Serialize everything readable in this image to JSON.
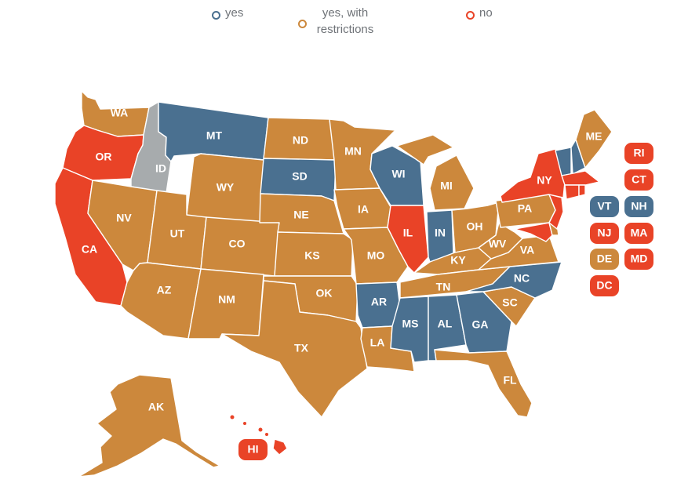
{
  "legend": {
    "yes": "yes",
    "restricted": "yes, with restrictions",
    "no": "no"
  },
  "colors": {
    "yes": "#4a7090",
    "restricted": "#cc883c",
    "no": "#e94327",
    "none": "#a7abad"
  },
  "states": {
    "WA": {
      "label": "WA",
      "status": "restricted"
    },
    "OR": {
      "label": "OR",
      "status": "no"
    },
    "CA": {
      "label": "CA",
      "status": "no"
    },
    "ID": {
      "label": "ID",
      "status": "none"
    },
    "NV": {
      "label": "NV",
      "status": "restricted"
    },
    "MT": {
      "label": "MT",
      "status": "yes"
    },
    "WY": {
      "label": "WY",
      "status": "restricted"
    },
    "UT": {
      "label": "UT",
      "status": "restricted"
    },
    "AZ": {
      "label": "AZ",
      "status": "restricted"
    },
    "CO": {
      "label": "CO",
      "status": "restricted"
    },
    "NM": {
      "label": "NM",
      "status": "restricted"
    },
    "ND": {
      "label": "ND",
      "status": "restricted"
    },
    "SD": {
      "label": "SD",
      "status": "yes"
    },
    "NE": {
      "label": "NE",
      "status": "restricted"
    },
    "KS": {
      "label": "KS",
      "status": "restricted"
    },
    "OK": {
      "label": "OK",
      "status": "restricted"
    },
    "TX": {
      "label": "TX",
      "status": "restricted"
    },
    "MN": {
      "label": "MN",
      "status": "restricted"
    },
    "IA": {
      "label": "IA",
      "status": "restricted"
    },
    "MO": {
      "label": "MO",
      "status": "restricted"
    },
    "AR": {
      "label": "AR",
      "status": "yes"
    },
    "LA": {
      "label": "LA",
      "status": "restricted"
    },
    "WI": {
      "label": "WI",
      "status": "yes"
    },
    "IL": {
      "label": "IL",
      "status": "no"
    },
    "MI": {
      "label": "MI",
      "status": "restricted"
    },
    "IN": {
      "label": "IN",
      "status": "yes"
    },
    "OH": {
      "label": "OH",
      "status": "restricted"
    },
    "KY": {
      "label": "KY",
      "status": "restricted"
    },
    "TN": {
      "label": "TN",
      "status": "restricted"
    },
    "MS": {
      "label": "MS",
      "status": "yes"
    },
    "AL": {
      "label": "AL",
      "status": "yes"
    },
    "GA": {
      "label": "GA",
      "status": "yes"
    },
    "FL": {
      "label": "FL",
      "status": "restricted"
    },
    "SC": {
      "label": "SC",
      "status": "restricted"
    },
    "NC": {
      "label": "NC",
      "status": "yes"
    },
    "VA": {
      "label": "VA",
      "status": "restricted"
    },
    "WV": {
      "label": "WV",
      "status": "restricted"
    },
    "PA": {
      "label": "PA",
      "status": "restricted"
    },
    "NY": {
      "label": "NY",
      "status": "no"
    },
    "VT": {
      "label": "VT",
      "status": "yes"
    },
    "NH": {
      "label": "NH",
      "status": "yes"
    },
    "ME": {
      "label": "ME",
      "status": "restricted"
    },
    "MA": {
      "label": "MA",
      "status": "no"
    },
    "RI": {
      "label": "RI",
      "status": "no"
    },
    "CT": {
      "label": "CT",
      "status": "no"
    },
    "NJ": {
      "label": "NJ",
      "status": "no"
    },
    "DE": {
      "label": "DE",
      "status": "restricted"
    },
    "MD": {
      "label": "MD",
      "status": "no"
    },
    "DC": {
      "label": "DC",
      "status": "no"
    },
    "AK": {
      "label": "AK",
      "status": "restricted"
    },
    "HI": {
      "label": "HI",
      "status": "no"
    }
  }
}
